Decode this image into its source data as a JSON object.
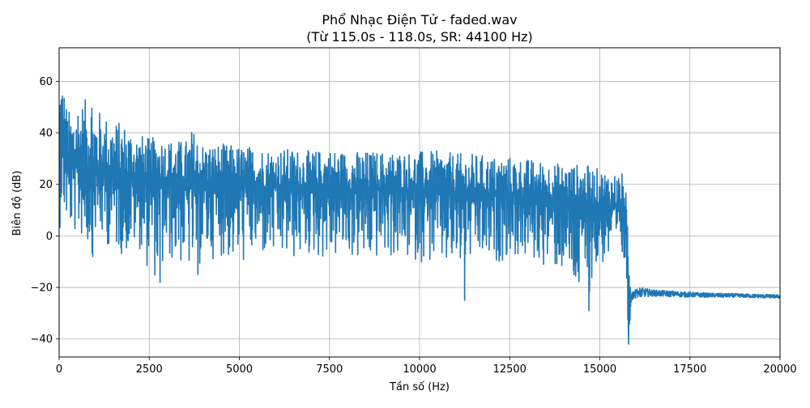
{
  "chart_data": {
    "type": "line",
    "title": "Phổ Nhạc Điện Tử - faded.wav",
    "subtitle": "(Từ 115.0s - 118.0s, SR: 44100 Hz)",
    "xlabel": "Tần số (Hz)",
    "ylabel": "Biên độ (dB)",
    "xlim": [
      0,
      20000
    ],
    "ylim": [
      -47,
      73
    ],
    "xticks": [
      0,
      2500,
      5000,
      7500,
      10000,
      12500,
      15000,
      17500,
      20000
    ],
    "yticks": [
      -40,
      -20,
      0,
      20,
      40,
      60
    ],
    "grid": true,
    "colors": {
      "series": "#1f77b4",
      "grid": "#b0b0b0"
    },
    "series": [
      {
        "envelope": {
          "x": [
            0,
            50,
            100,
            200,
            300,
            400,
            500,
            700,
            900,
            1000,
            1200,
            1500,
            1800,
            2000,
            2200,
            2500,
            2800,
            3000,
            3500,
            3700,
            4000,
            4500,
            5000,
            5500,
            6000,
            6500,
            7000,
            7500,
            8000,
            8500,
            9000,
            9500,
            10000,
            10500,
            11000,
            11500,
            12000,
            12500,
            13000,
            13500,
            14000,
            14500,
            15000,
            15500,
            15700,
            15750,
            15800,
            15850,
            15900,
            16000,
            16200,
            16500,
            17000,
            17500,
            18000,
            18500,
            19000,
            19500,
            20000
          ],
          "upper": [
            62,
            67,
            63,
            52,
            48,
            50,
            55,
            52,
            61,
            50,
            48,
            45,
            44,
            42,
            40,
            38,
            39,
            38,
            37,
            42,
            36,
            36,
            35,
            35,
            34,
            34,
            33,
            34,
            33,
            33,
            33,
            33,
            33,
            33,
            32,
            32,
            31,
            31,
            30,
            29,
            28,
            28,
            26,
            25,
            24,
            10,
            -5,
            -15,
            -18,
            -19,
            -20,
            -21,
            -21.5,
            -22,
            -22.3,
            -22.5,
            -22.7,
            -22.8,
            -23
          ],
          "center": [
            32,
            35,
            33,
            28,
            26,
            27,
            27,
            26,
            26,
            25,
            24,
            24,
            23,
            23,
            22,
            22,
            22,
            21,
            21,
            21,
            21,
            20,
            20,
            19,
            19,
            19,
            19,
            19,
            18,
            18,
            18,
            18,
            18,
            18,
            17,
            17,
            16,
            16,
            15,
            15,
            14,
            13,
            12,
            11,
            11,
            -5,
            -30,
            -25,
            -23,
            -22,
            -22,
            -22.2,
            -22.5,
            -22.8,
            -23,
            -23.1,
            -23.2,
            -23.4,
            -23.5
          ],
          "lower": [
            -3,
            10,
            8,
            5,
            2,
            0,
            0,
            -2,
            -8,
            0,
            -3,
            -5,
            -8,
            -6,
            -4,
            -15,
            -18,
            -10,
            -12,
            -16,
            -10,
            -8,
            -12,
            -8,
            -10,
            -10,
            -8,
            -10,
            -8,
            -12,
            -8,
            -10,
            -10,
            -12,
            -15,
            -10,
            -12,
            -8,
            -10,
            -12,
            -15,
            -29,
            -12,
            -10,
            -15,
            -40,
            -42,
            -30,
            -26,
            -24,
            -23.5,
            -23.5,
            -23.8,
            -24,
            -24,
            -24.1,
            -24.2,
            -24.3,
            -24.4
          ]
        },
        "spikes": [
          {
            "x": 930,
            "y": -8
          },
          {
            "x": 2800,
            "y": -18
          },
          {
            "x": 3850,
            "y": -15
          },
          {
            "x": 11250,
            "y": -25
          },
          {
            "x": 14700,
            "y": -29
          },
          {
            "x": 15800,
            "y": -42
          }
        ]
      }
    ]
  }
}
